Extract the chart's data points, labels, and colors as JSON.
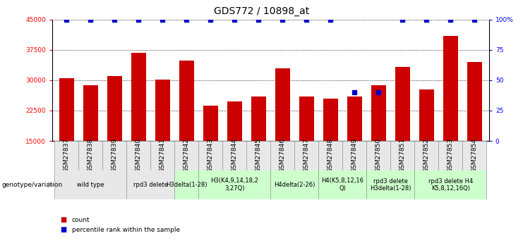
{
  "title": "GDS772 / 10898_at",
  "samples": [
    "GSM27837",
    "GSM27838",
    "GSM27839",
    "GSM27840",
    "GSM27841",
    "GSM27842",
    "GSM27843",
    "GSM27844",
    "GSM27845",
    "GSM27846",
    "GSM27847",
    "GSM27848",
    "GSM27849",
    "GSM27850",
    "GSM27851",
    "GSM27852",
    "GSM27853",
    "GSM27854"
  ],
  "bar_values": [
    30500,
    28700,
    31000,
    36800,
    30200,
    34800,
    23800,
    24800,
    26000,
    33000,
    26000,
    25500,
    26000,
    28800,
    33200,
    27700,
    41000,
    34500
  ],
  "percentile_values": [
    100,
    100,
    100,
    100,
    100,
    100,
    100,
    100,
    100,
    100,
    100,
    100,
    40,
    40,
    100,
    100,
    100,
    100
  ],
  "bar_color": "#cc0000",
  "percentile_color": "#0000cc",
  "ylim_left": [
    15000,
    45000
  ],
  "ylim_right": [
    0,
    100
  ],
  "yticks_left": [
    15000,
    22500,
    30000,
    37500,
    45000
  ],
  "yticks_right": [
    0,
    25,
    50,
    75,
    100
  ],
  "yticklabels_right": [
    "0",
    "25",
    "50",
    "75",
    "100%"
  ],
  "groups": [
    {
      "label": "wild type",
      "start": 0,
      "end": 3,
      "color": "#e8e8e8"
    },
    {
      "label": "rpd3 delete",
      "start": 3,
      "end": 5,
      "color": "#e8e8e8"
    },
    {
      "label": "H3delta(1-28)",
      "start": 5,
      "end": 6,
      "color": "#ccffcc"
    },
    {
      "label": "H3(K4,9,14,18,2\n3,27Q)",
      "start": 6,
      "end": 9,
      "color": "#ccffcc"
    },
    {
      "label": "H4delta(2-26)",
      "start": 9,
      "end": 11,
      "color": "#ccffcc"
    },
    {
      "label": "H4(K5,8,12,16\nQ)",
      "start": 11,
      "end": 13,
      "color": "#ccffcc"
    },
    {
      "label": "rpd3 delete\nH3delta(1-28)",
      "start": 13,
      "end": 15,
      "color": "#ccffcc"
    },
    {
      "label": "rpd3 delete H4\nK5,8,12,16Q)",
      "start": 15,
      "end": 18,
      "color": "#ccffcc"
    }
  ],
  "legend_count_label": "count",
  "legend_percentile_label": "percentile rank within the sample",
  "genotype_label": "genotype/variation",
  "title_fontsize": 10,
  "tick_fontsize": 6.5,
  "group_fontsize": 6.0,
  "label_fontsize": 6.5
}
